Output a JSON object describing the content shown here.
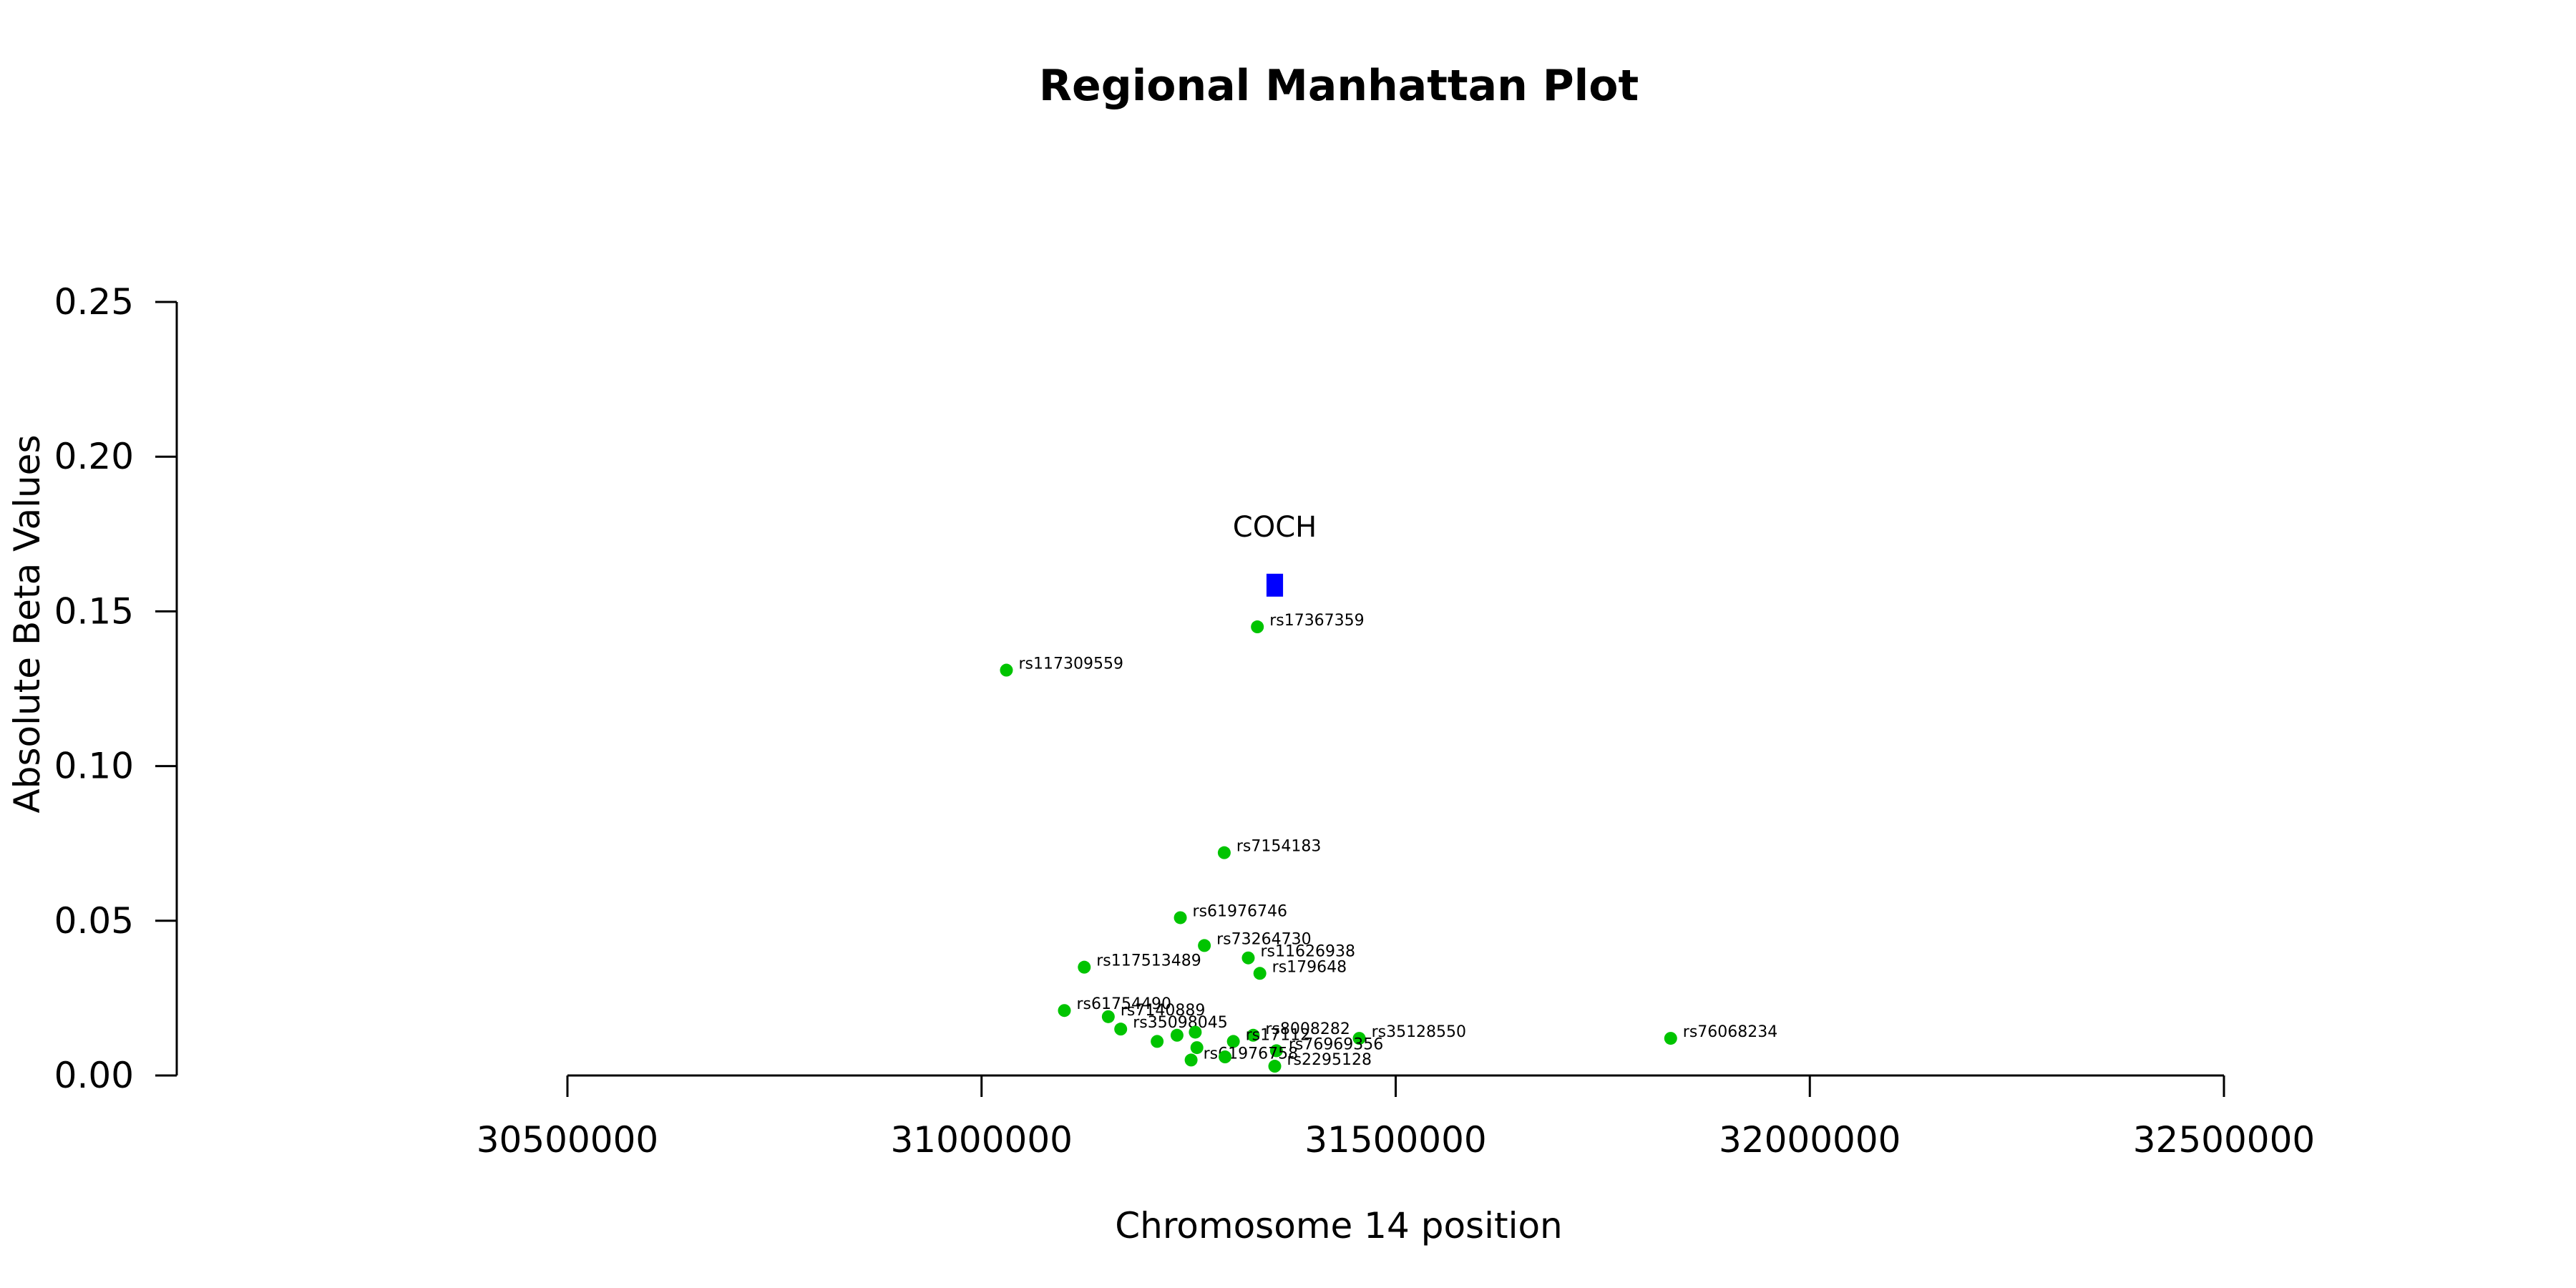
{
  "chart_data": {
    "type": "scatter",
    "title": "Regional Manhattan Plot",
    "xlabel": "Chromosome 14 position",
    "ylabel": "Absolute Beta Values",
    "xlim": [
      30500000,
      32500000
    ],
    "ylim": [
      0,
      0.25
    ],
    "x_ticks": [
      30500000,
      31000000,
      31500000,
      32000000,
      32500000
    ],
    "x_tick_labels": [
      "30500000",
      "31000000",
      "31500000",
      "32000000",
      "32500000"
    ],
    "y_ticks": [
      0,
      0.05,
      0.1,
      0.15,
      0.2,
      0.25
    ],
    "y_tick_labels": [
      "0.00",
      "0.05",
      "0.10",
      "0.15",
      "0.20",
      "0.25"
    ],
    "grid": false,
    "colors": {
      "snp": "#00c400",
      "gene": "#0000ff"
    },
    "gene": {
      "name": "COCH",
      "start": 31344000,
      "end": 31364000,
      "y": 0.158
    },
    "points": [
      {
        "label": "rs17367359",
        "x": 31333000,
        "y": 0.145
      },
      {
        "label": "rs117309559",
        "x": 31030000,
        "y": 0.131
      },
      {
        "label": "rs7154183",
        "x": 31293000,
        "y": 0.072
      },
      {
        "label": "rs61976746",
        "x": 31240000,
        "y": 0.051
      },
      {
        "label": "rs73264730",
        "x": 31269000,
        "y": 0.042
      },
      {
        "label": "rs11626938",
        "x": 31322000,
        "y": 0.038
      },
      {
        "label": "rs117513489",
        "x": 31124000,
        "y": 0.035
      },
      {
        "label": "rs179648",
        "x": 31336000,
        "y": 0.033
      },
      {
        "label": "rs61754490",
        "x": 31100000,
        "y": 0.021
      },
      {
        "label": "rs7140889",
        "x": 31153000,
        "y": 0.019
      },
      {
        "label": "rs35098045",
        "x": 31168000,
        "y": 0.015
      },
      {
        "label": "",
        "x": 31236000,
        "y": 0.013
      },
      {
        "label": "",
        "x": 31258000,
        "y": 0.014
      },
      {
        "label": "rs8008282",
        "x": 31328000,
        "y": 0.013
      },
      {
        "label": "rs35128550",
        "x": 31456000,
        "y": 0.012
      },
      {
        "label": "",
        "x": 31212000,
        "y": 0.011
      },
      {
        "label": "rs17112",
        "x": 31304000,
        "y": 0.011
      },
      {
        "label": "rs76068234",
        "x": 31832000,
        "y": 0.012
      },
      {
        "label": "",
        "x": 31260000,
        "y": 0.009
      },
      {
        "label": "rs76969356",
        "x": 31356000,
        "y": 0.008
      },
      {
        "label": "rs61976758",
        "x": 31253000,
        "y": 0.005
      },
      {
        "label": "",
        "x": 31294000,
        "y": 0.006
      },
      {
        "label": "rs2295128",
        "x": 31354000,
        "y": 0.003
      }
    ]
  }
}
